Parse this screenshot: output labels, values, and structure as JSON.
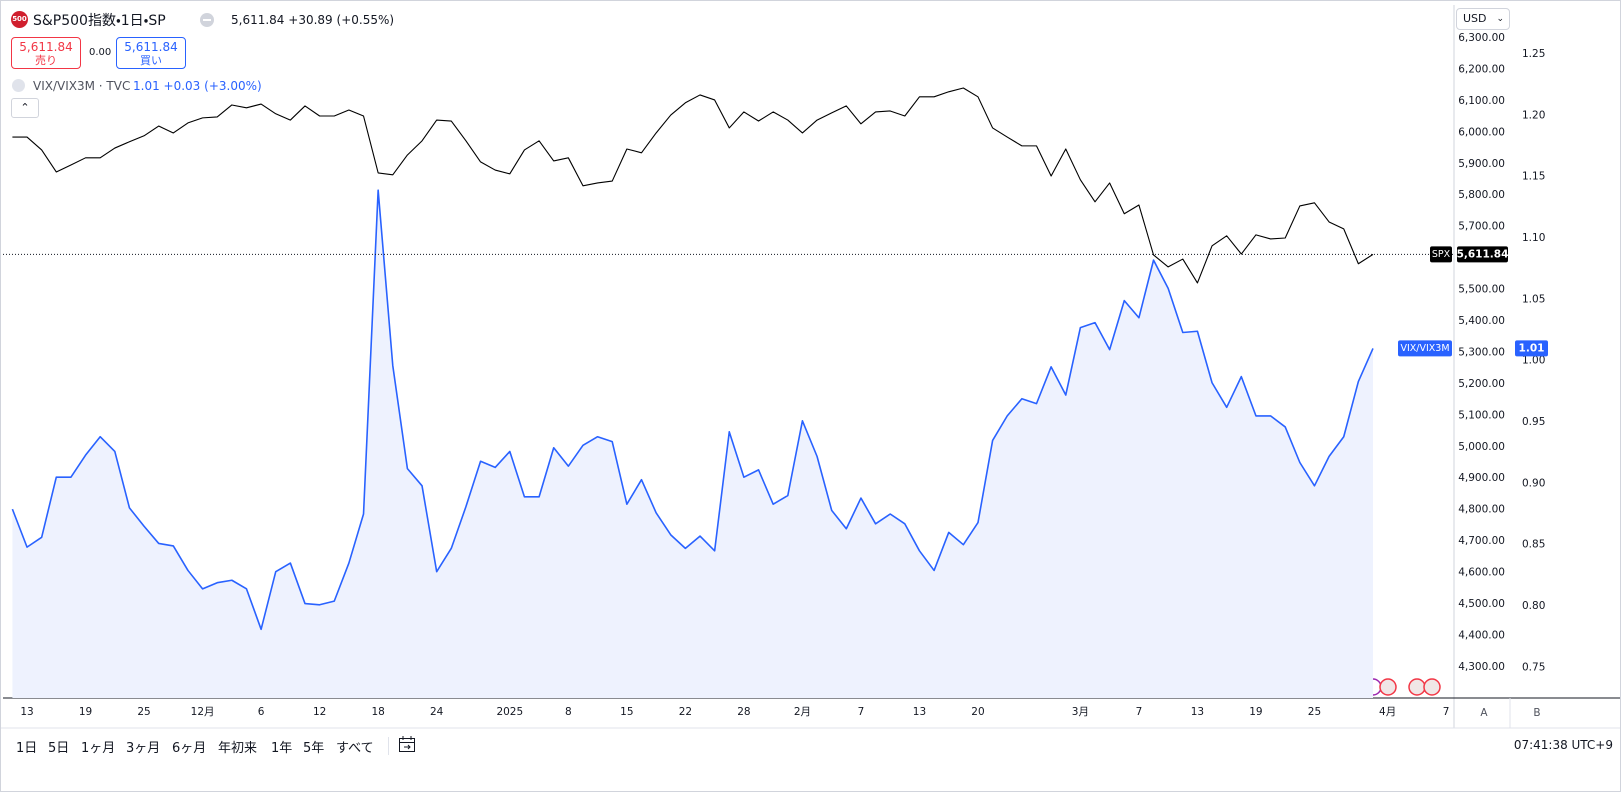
{
  "header": {
    "symbol_icon": "500",
    "title": "S&P500指数・1日・SP",
    "price": "5,611.84",
    "change": "+30.89",
    "change_pct": "(+0.55%)",
    "sell": {
      "price": "5,611.84",
      "label": "売り"
    },
    "spread": "0.00",
    "buy": {
      "price": "5,611.84",
      "label": "買い"
    },
    "overlay": {
      "title": "VIX/VIX3M · TVC",
      "value": "1.01",
      "change": "+0.03",
      "change_pct": "(+3.00%)"
    },
    "currency": "USD"
  },
  "chart_data": {
    "type": "line",
    "categories": [
      null,
      "13",
      null,
      null,
      null,
      "19",
      null,
      null,
      null,
      "25",
      null,
      null,
      null,
      "12月",
      null,
      null,
      null,
      "6",
      null,
      null,
      null,
      "12",
      null,
      null,
      null,
      "18",
      null,
      null,
      null,
      "24",
      null,
      null,
      null,
      null,
      "2025",
      null,
      null,
      null,
      "8",
      null,
      null,
      null,
      "15",
      null,
      null,
      null,
      "22",
      null,
      null,
      null,
      "28",
      null,
      null,
      null,
      "2月",
      null,
      null,
      null,
      "7",
      null,
      null,
      null,
      "13",
      null,
      null,
      null,
      "20",
      null,
      null,
      null,
      null,
      null,
      null,
      "3月",
      null,
      null,
      null,
      "7",
      null,
      null,
      null,
      "13",
      null,
      null,
      null,
      "19",
      null,
      null,
      null,
      "25",
      null,
      null,
      null,
      null,
      "4月",
      null,
      null,
      null,
      "7"
    ],
    "series": [
      {
        "name": "SPX",
        "color": "#000000",
        "last_value_label": "5,611.84",
        "values": [
          5985,
          5985,
          5944,
          5874,
          5896,
          5919,
          5919,
          5950,
          5970,
          5989,
          6020,
          5998,
          6030,
          6046,
          6049,
          6087,
          6078,
          6090,
          6059,
          6039,
          6084,
          6052,
          6052,
          6071,
          6052,
          5871,
          5865,
          5928,
          5973,
          6039,
          6036,
          5973,
          5906,
          5880,
          5868,
          5944,
          5973,
          5909,
          5919,
          5830,
          5839,
          5845,
          5947,
          5935,
          5998,
          6055,
          6094,
          6119,
          6103,
          6014,
          6065,
          6036,
          6065,
          6039,
          5998,
          6039,
          6062,
          6084,
          6027,
          6065,
          6068,
          6052,
          6113,
          6113,
          6129,
          6141,
          6113,
          6014,
          5985,
          5957,
          5957,
          5861,
          5947,
          5849,
          5779,
          5839,
          5741,
          5769,
          5610,
          5572,
          5597,
          5521,
          5639,
          5671,
          5613,
          5674,
          5661,
          5664,
          5766,
          5776,
          5715,
          5693,
          5582,
          5611.84,
          null,
          null,
          null,
          null,
          null
        ]
      },
      {
        "name": "VIX/VIX3M",
        "color": "#2962ff",
        "axis": "y2",
        "area": true,
        "area_color": "#eef2fe",
        "last_value_label": "1.01",
        "values": [
          0.879,
          0.848,
          0.856,
          0.905,
          0.905,
          0.923,
          0.938,
          0.926,
          0.88,
          0.865,
          0.851,
          0.849,
          0.829,
          0.814,
          0.819,
          0.821,
          0.814,
          0.781,
          0.828,
          0.835,
          0.802,
          0.801,
          0.804,
          0.835,
          0.875,
          1.139,
          0.996,
          0.912,
          0.898,
          0.828,
          0.847,
          0.881,
          0.918,
          0.913,
          0.926,
          0.889,
          0.889,
          0.929,
          0.914,
          0.931,
          0.938,
          0.934,
          0.883,
          0.903,
          0.876,
          0.858,
          0.847,
          0.857,
          0.845,
          0.942,
          0.905,
          0.911,
          0.883,
          0.89,
          0.951,
          0.922,
          0.878,
          0.863,
          0.888,
          0.867,
          0.875,
          0.867,
          0.845,
          0.829,
          0.86,
          0.85,
          0.868,
          0.935,
          0.955,
          0.969,
          0.965,
          0.995,
          0.972,
          1.027,
          1.031,
          1.009,
          1.049,
          1.035,
          1.082,
          1.059,
          1.023,
          1.024,
          0.982,
          0.962,
          0.987,
          0.955,
          0.955,
          0.946,
          0.917,
          0.898,
          0.922,
          0.938,
          0.983,
          1.01,
          null,
          null,
          null,
          null,
          null
        ]
      }
    ],
    "ylim": [
      4201,
      6405
    ],
    "yticks": [
      {
        "value": 4300,
        "label": "4,300.00"
      },
      {
        "value": 4400,
        "label": "4,400.00"
      },
      {
        "value": 4500,
        "label": "4,500.00"
      },
      {
        "value": 4600,
        "label": "4,600.00"
      },
      {
        "value": 4700,
        "label": "4,700.00"
      },
      {
        "value": 4800,
        "label": "4,800.00"
      },
      {
        "value": 4900,
        "label": "4,900.00"
      },
      {
        "value": 5000,
        "label": "5,000.00"
      },
      {
        "value": 5100,
        "label": "5,100.00"
      },
      {
        "value": 5200,
        "label": "5,200.00"
      },
      {
        "value": 5300,
        "label": "5,300.00"
      },
      {
        "value": 5400,
        "label": "5,400.00"
      },
      {
        "value": 5500,
        "label": "5,500.00"
      },
      {
        "value": 5600,
        "label": "5,600.00"
      },
      {
        "value": 5700,
        "label": "5,700.00"
      },
      {
        "value": 5800,
        "label": "5,800.00"
      },
      {
        "value": 5900,
        "label": "5,900.00"
      },
      {
        "value": 6000,
        "label": "6,000.00"
      },
      {
        "value": 6100,
        "label": "6,100.00"
      },
      {
        "value": 6200,
        "label": "6,200.00"
      },
      {
        "value": 6300,
        "label": "6,300.00"
      }
    ],
    "y2lim": [
      0.725,
      1.29
    ],
    "y2ticks": [
      0.75,
      {
        "value": 0.8,
        "label": "0.80"
      },
      0.85,
      {
        "value": 0.9,
        "label": "0.90"
      },
      0.95,
      {
        "value": 1,
        "label": "1.00"
      },
      1.05,
      {
        "value": 1.1,
        "label": "1.10"
      },
      1.15,
      {
        "value": 1.2,
        "label": "1.20"
      },
      1.25
    ],
    "scale_buttons": [
      "A",
      "B"
    ]
  },
  "footer": {
    "ranges": [
      "1日",
      "5日",
      "1ヶ月",
      "3ヶ月",
      "6ヶ月",
      "年初来",
      "1年",
      "5年",
      "すべて"
    ],
    "time": "07:41:38 UTC+9"
  }
}
